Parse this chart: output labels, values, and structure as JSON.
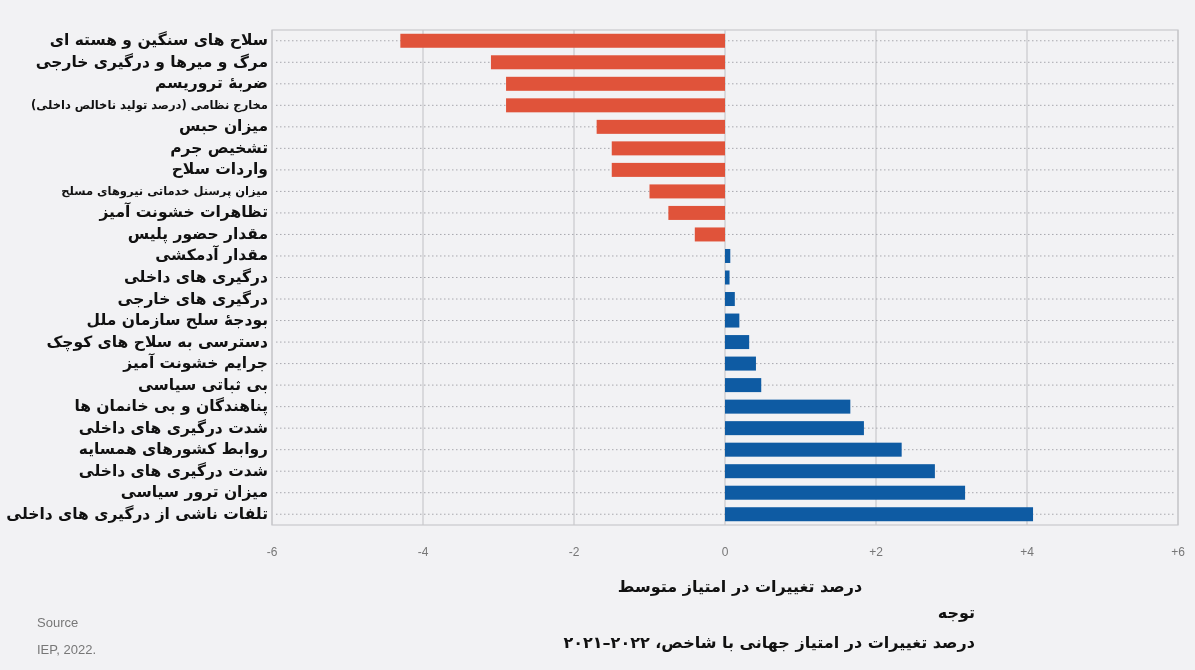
{
  "chart_data": {
    "type": "bar",
    "orientation": "horizontal",
    "categories": [
      "سلاح های سنگین و هسته ای",
      "مرگ و میرها و درگیری خارجی",
      "ضربهٔ تروریسم",
      "مخارج نظامی (درصد تولید ناخالص داخلی)",
      "میزان حبس",
      "تشخیص جرم",
      "واردات سلاح",
      "میزان پرسنل خدماتی نیروهای مسلح",
      "تظاهرات خشونت آمیز",
      "مقدار حضور پلیس",
      "مقدار آدمکشی",
      "درگیری های داخلی",
      "درگیری های خارجی",
      "بودجهٔ سلح سازمان ملل",
      "دسترسی به سلاح های کوچک",
      "جرایم خشونت آمیز",
      "بی ثباتی سیاسی",
      "پناهندگان و بی خانمان ها",
      "شدت درگیری های داخلی",
      "روابط کشورهای همسایه",
      "شدت درگیری های داخلی",
      "میزان ترور سیاسی",
      "تلفات ناشی از درگیری های داخلی"
    ],
    "values": [
      -4.3,
      -3.1,
      -2.9,
      -2.9,
      -1.7,
      -1.5,
      -1.5,
      -1.0,
      -0.75,
      -0.4,
      0.07,
      0.06,
      0.13,
      0.19,
      0.32,
      0.41,
      0.48,
      1.66,
      1.84,
      2.34,
      2.78,
      3.18,
      4.08
    ],
    "colors": [
      "#e0533a",
      "#e0533a",
      "#e0533a",
      "#e0533a",
      "#e0533a",
      "#e0533a",
      "#e0533a",
      "#e0533a",
      "#e0533a",
      "#e0533a",
      "#0e5ba3",
      "#0e5ba3",
      "#0e5ba3",
      "#0e5ba3",
      "#0e5ba3",
      "#0e5ba3",
      "#0e5ba3",
      "#0e5ba3",
      "#0e5ba3",
      "#0e5ba3",
      "#0e5ba3",
      "#0e5ba3",
      "#0e5ba3"
    ],
    "xlim": [
      -6,
      6
    ],
    "xticks": [
      -6,
      -4,
      -2,
      0,
      {
        "value": 2,
        "label": "+2"
      },
      {
        "value": 4,
        "label": "+4"
      },
      {
        "value": 6,
        "label": "+6"
      }
    ],
    "grid": true,
    "xlabel": "درصد تغییرات در امتیاز متوسط",
    "annotations": [
      "توجه",
      "درصد تغییرات در امتیاز جهانی با شاخص، ۲۰۲۲–۲۰۲۱",
      "Source",
      "IEP, 2022."
    ]
  }
}
